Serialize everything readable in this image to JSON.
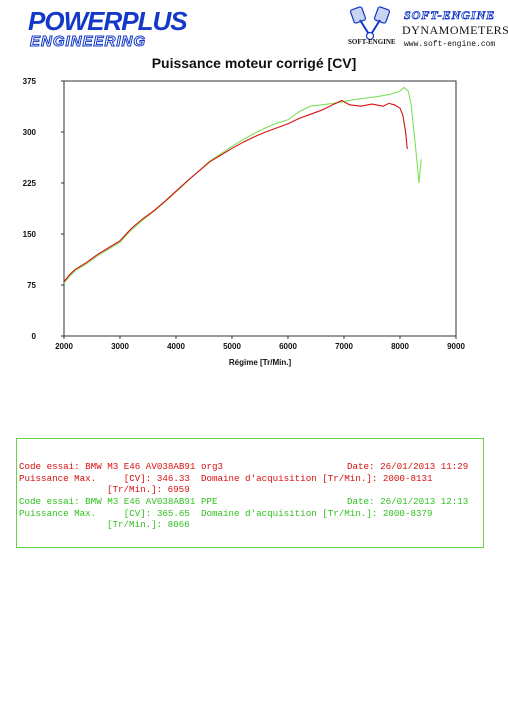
{
  "header": {
    "logo_left_line1": "POWERPLUS",
    "logo_left_line2": "ENGINEERING",
    "logo_right_title": "SOFT-ENGINE",
    "logo_right_line2": "DYNAMOMETERS",
    "logo_right_small": "SOFT-ENGINE",
    "logo_right_url": "www.soft-engine.com"
  },
  "colors": {
    "run1": "#d81010",
    "run2": "#7ee05a",
    "brand_blue": "#1438c8"
  },
  "chart_data": {
    "type": "line",
    "title": "Puissance moteur corrigé [CV]",
    "xlabel": "Régime [Tr/Min.]",
    "ylabel": "",
    "xlim": [
      2000,
      9000
    ],
    "ylim": [
      0,
      375
    ],
    "xticks": [
      2000,
      3000,
      4000,
      5000,
      6000,
      7000,
      8000,
      9000
    ],
    "yticks": [
      0,
      75,
      150,
      225,
      300,
      375
    ],
    "grid": false,
    "series": [
      {
        "x": [
          2000,
          2100,
          2200,
          2400,
          2600,
          2800,
          3000,
          3200,
          3400,
          3600,
          3800,
          4000,
          4200,
          4400,
          4600,
          4800,
          5000,
          5200,
          5400,
          5600,
          5800,
          6000,
          6200,
          6400,
          6600,
          6800,
          6959,
          7100,
          7300,
          7500,
          7700,
          7800,
          7900,
          8000,
          8050,
          8100,
          8131
        ],
        "y": [
          80,
          90,
          98,
          108,
          120,
          130,
          140,
          158,
          172,
          184,
          198,
          213,
          228,
          242,
          256,
          266,
          276,
          285,
          293,
          300,
          306,
          312,
          320,
          326,
          332,
          340,
          346.33,
          340,
          338,
          341,
          338,
          342,
          340,
          335,
          325,
          300,
          275
        ]
      },
      {
        "x": [
          2000,
          2100,
          2200,
          2400,
          2600,
          2800,
          3000,
          3200,
          3400,
          3600,
          3800,
          4000,
          4200,
          4400,
          4600,
          4800,
          5000,
          5200,
          5400,
          5600,
          5800,
          6000,
          6200,
          6400,
          6600,
          6800,
          7000,
          7200,
          7400,
          7600,
          7800,
          8000,
          8066,
          8150,
          8200,
          8250,
          8300,
          8340,
          8379
        ],
        "y": [
          78,
          88,
          96,
          106,
          118,
          128,
          138,
          156,
          170,
          183,
          197,
          212,
          227,
          242,
          257,
          268,
          279,
          289,
          298,
          306,
          313,
          318,
          330,
          338,
          340,
          342,
          345,
          348,
          350,
          352,
          355,
          360,
          365.65,
          360,
          340,
          300,
          260,
          225,
          260
        ]
      }
    ]
  },
  "info": {
    "run1": {
      "code_line": "Code essai: BMW M3 E46 AV038AB91 org3",
      "date_line": "Date: 26/01/2013 11:29",
      "max_line": "Puissance Max.     [CV]: 346.33  Domaine d'acquisition [Tr/Min.]: 2000-8131",
      "rpm_line": "[Tr/Min.]: 6959"
    },
    "run2": {
      "code_line": "Code essai: BMW M3 E46 AV038AB91 PPE",
      "date_line": "Date: 26/01/2013 12:13",
      "max_line": "Puissance Max.     [CV]: 365.65  Domaine d'acquisition [Tr/Min.]: 2000-8379",
      "rpm_line": "[Tr/Min.]: 8066"
    }
  }
}
